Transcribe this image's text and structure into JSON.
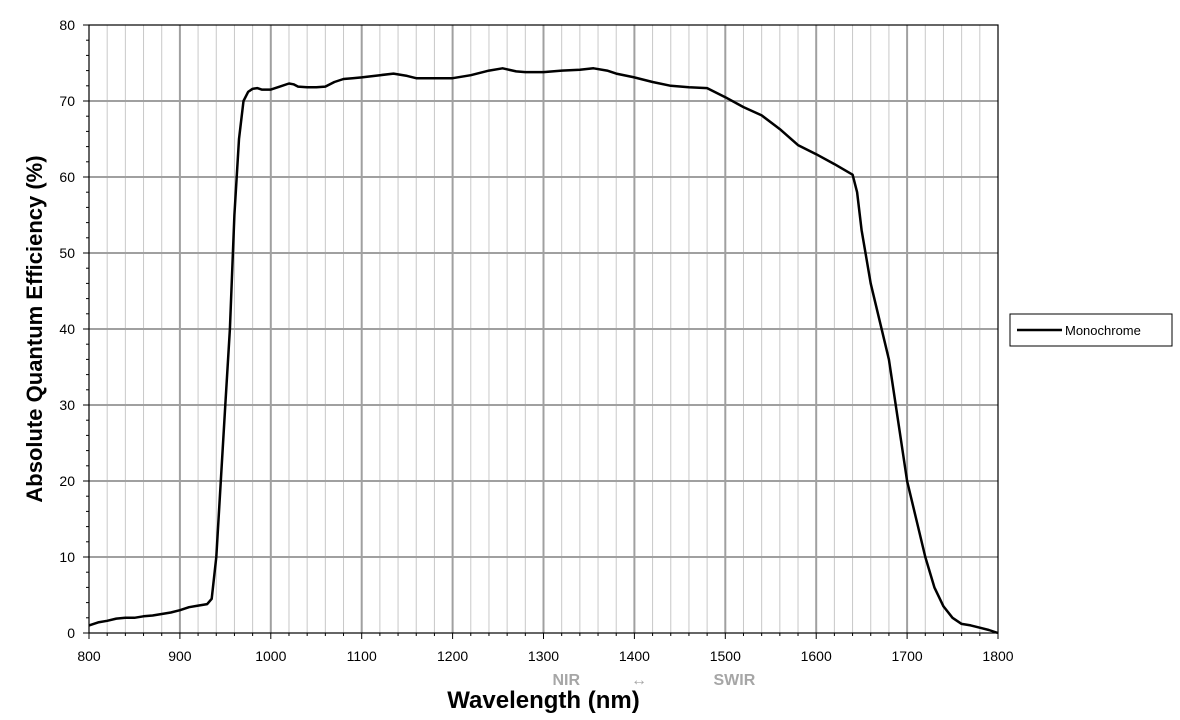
{
  "chart_data": {
    "type": "line",
    "title": "",
    "xlabel": "Wavelength (nm)",
    "ylabel": "Absolute Quantum Efficiency (%)",
    "xlim": [
      800,
      1800
    ],
    "ylim": [
      0,
      80
    ],
    "x_ticks": [
      800,
      900,
      1000,
      1100,
      1200,
      1300,
      1400,
      1500,
      1600,
      1700,
      1800
    ],
    "y_ticks": [
      0,
      10,
      20,
      30,
      40,
      50,
      60,
      70,
      80
    ],
    "x_tick_labels": [
      "800",
      "900",
      "1000",
      "1100",
      "1200",
      "1300",
      "1400",
      "1500",
      "1600",
      "1700",
      "1800"
    ],
    "y_tick_labels": [
      "0",
      "10",
      "20",
      "30",
      "40",
      "50",
      "60",
      "70",
      "80"
    ],
    "grid": true,
    "legend_position": "right",
    "series": [
      {
        "name": "Monochrome",
        "color": "#000000",
        "x": [
          800,
          810,
          820,
          830,
          840,
          850,
          860,
          870,
          880,
          890,
          900,
          910,
          920,
          930,
          935,
          940,
          945,
          950,
          955,
          960,
          965,
          970,
          975,
          980,
          985,
          990,
          1000,
          1010,
          1020,
          1025,
          1030,
          1040,
          1050,
          1060,
          1070,
          1080,
          1090,
          1100,
          1120,
          1135,
          1150,
          1160,
          1180,
          1200,
          1220,
          1240,
          1255,
          1270,
          1280,
          1300,
          1320,
          1340,
          1355,
          1370,
          1380,
          1400,
          1420,
          1440,
          1460,
          1480,
          1500,
          1520,
          1540,
          1560,
          1580,
          1600,
          1620,
          1640,
          1645,
          1650,
          1660,
          1670,
          1680,
          1690,
          1700,
          1710,
          1720,
          1730,
          1740,
          1750,
          1760,
          1770,
          1780,
          1790,
          1800
        ],
        "values": [
          1.0,
          1.4,
          1.6,
          1.9,
          2.0,
          2.0,
          2.2,
          2.3,
          2.5,
          2.7,
          3.0,
          3.4,
          3.6,
          3.8,
          4.5,
          10,
          20,
          30,
          40,
          55,
          65,
          70,
          71.2,
          71.6,
          71.7,
          71.5,
          71.5,
          71.9,
          72.3,
          72.2,
          71.9,
          71.8,
          71.8,
          71.9,
          72.5,
          72.9,
          73.0,
          73.1,
          73.4,
          73.6,
          73.3,
          73.0,
          73.0,
          73.0,
          73.4,
          74.0,
          74.3,
          73.9,
          73.8,
          73.8,
          74.0,
          74.1,
          74.3,
          74.0,
          73.6,
          73.1,
          72.5,
          72.0,
          71.8,
          71.7,
          70.5,
          69.2,
          68.1,
          66.3,
          64.2,
          63.0,
          61.7,
          60.3,
          58,
          53,
          46,
          41,
          36,
          28,
          20,
          15,
          10,
          6,
          3.5,
          2.0,
          1.2,
          1.0,
          0.7,
          0.4,
          0.0
        ]
      }
    ],
    "annotations": [
      {
        "text": "NIR",
        "x": 1325,
        "color": "#a6a6a6"
      },
      {
        "text": "↔",
        "x": 1405,
        "color": "#a6a6a6"
      },
      {
        "text": "SWIR",
        "x": 1510,
        "color": "#a6a6a6"
      }
    ]
  }
}
